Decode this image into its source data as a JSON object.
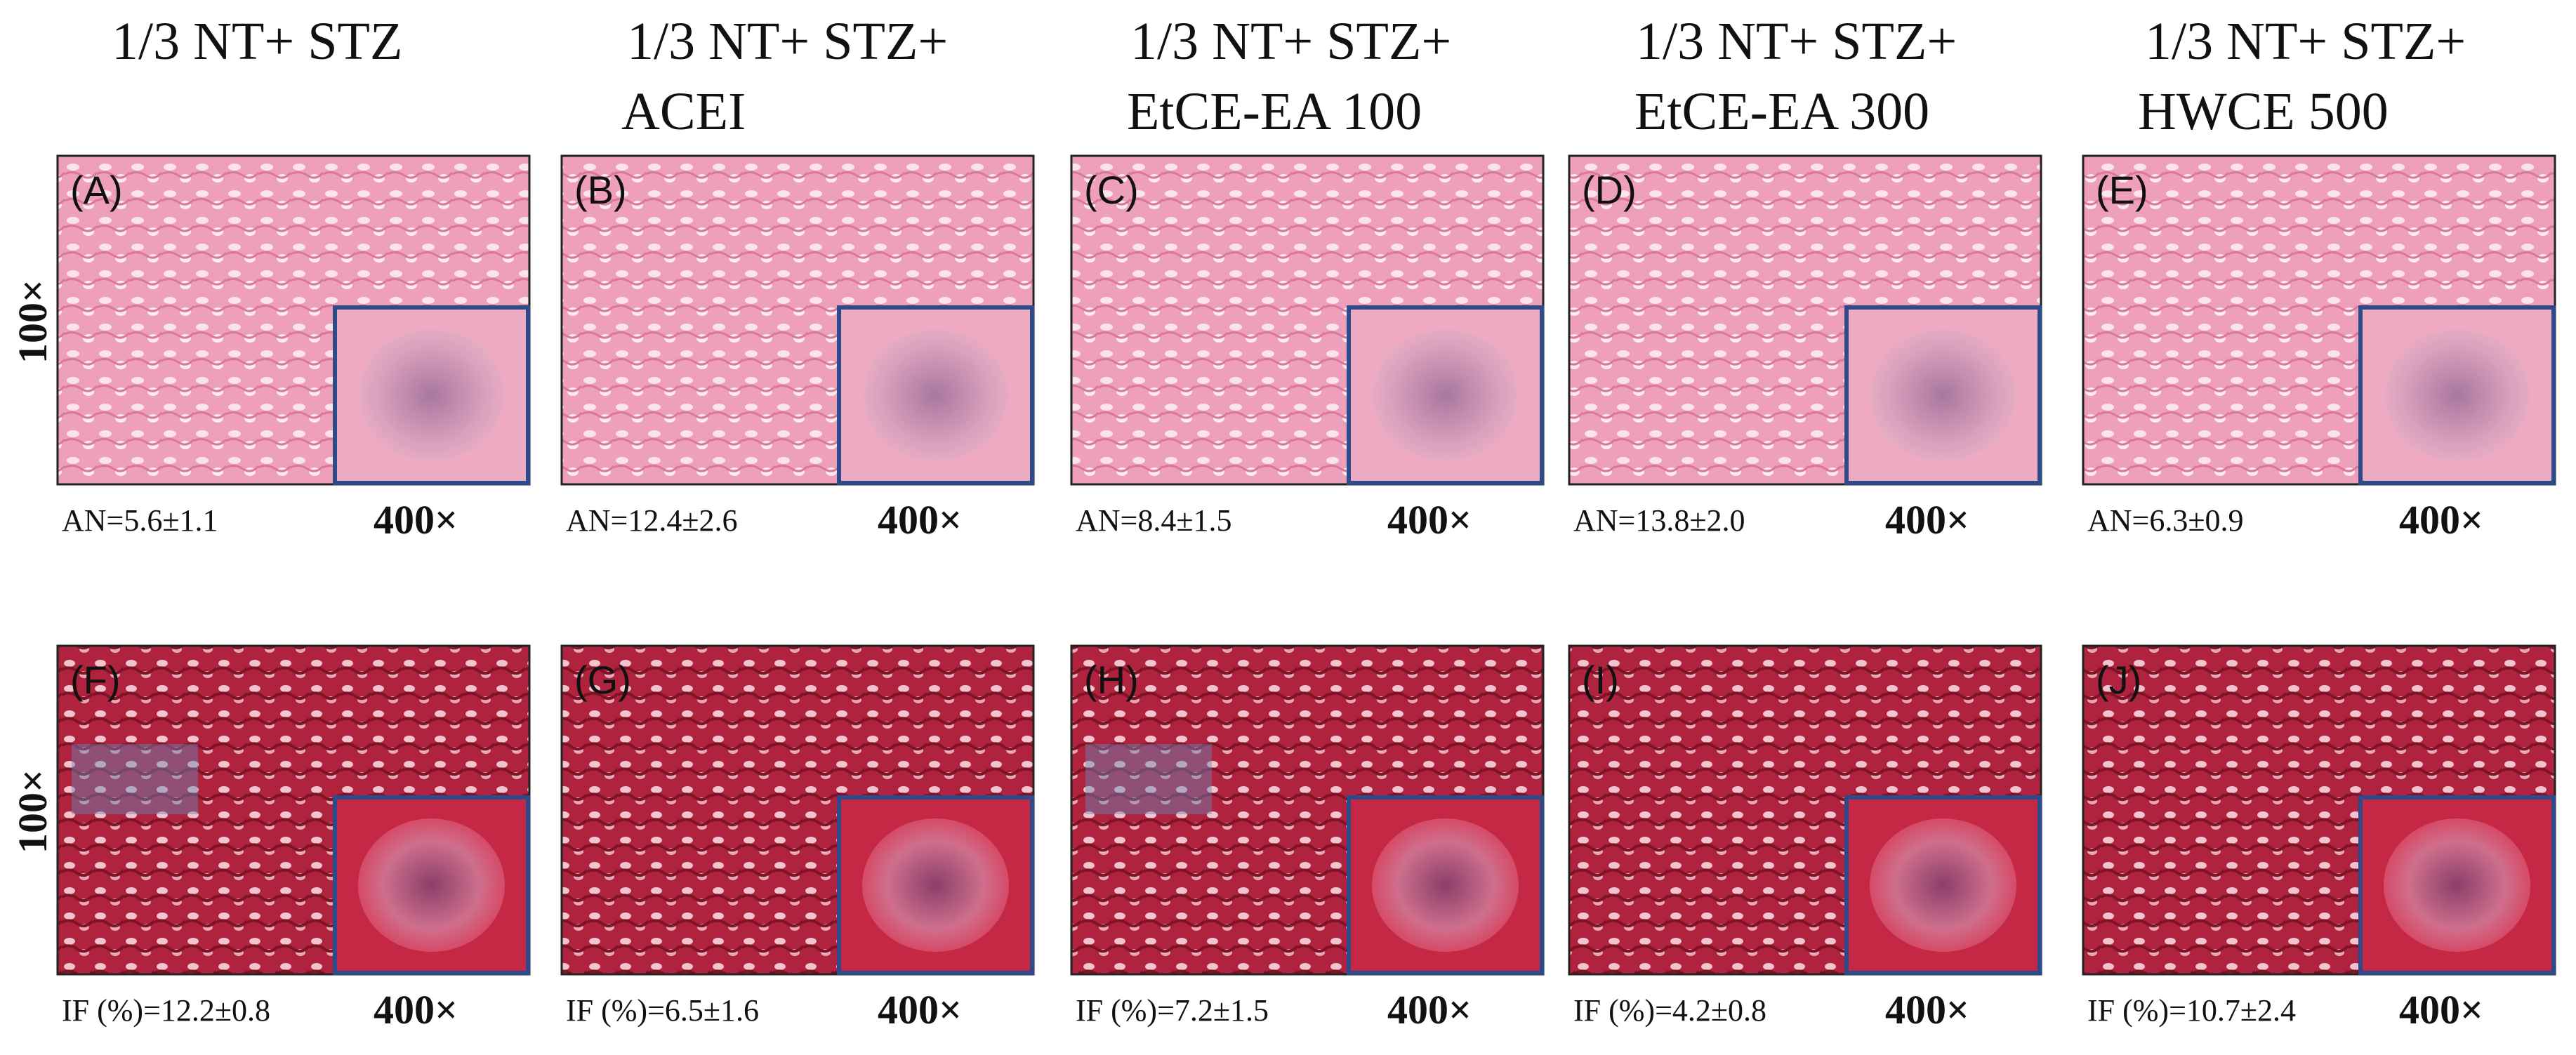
{
  "columns": [
    {
      "header": [
        "1/3 NT+ STZ"
      ]
    },
    {
      "header": [
        "1/3 NT+ STZ+",
        "ACEI"
      ]
    },
    {
      "header": [
        "1/3 NT+ STZ+",
        "EtCE-EA 100"
      ]
    },
    {
      "header": [
        "1/3 NT+ STZ+",
        "EtCE-EA 300"
      ]
    },
    {
      "header": [
        "1/3 NT+ STZ+",
        "HWCE 500"
      ]
    }
  ],
  "rows": [
    {
      "label": "100×",
      "panels": [
        {
          "label": "(A)",
          "stat": "AN=5.6±1.1",
          "magnification": "400×"
        },
        {
          "label": "(B)",
          "stat": "AN=12.4±2.6",
          "magnification": "400×"
        },
        {
          "label": "(C)",
          "stat": "AN=8.4±1.5",
          "magnification": "400×"
        },
        {
          "label": "(D)",
          "stat": "AN=13.8±2.0",
          "magnification": "400×"
        },
        {
          "label": "(E)",
          "stat": "AN=6.3±0.9",
          "magnification": "400×"
        }
      ]
    },
    {
      "label": "100×",
      "panels": [
        {
          "label": "(F)",
          "stat": "IF (%)=12.2±0.8",
          "magnification": "400×"
        },
        {
          "label": "(G)",
          "stat": "IF (%)=6.5±1.6",
          "magnification": "400×"
        },
        {
          "label": "(H)",
          "stat": "IF (%)=7.2±1.5",
          "magnification": "400×"
        },
        {
          "label": "(I)",
          "stat": "IF (%)=4.2±0.8",
          "magnification": "400×"
        },
        {
          "label": "(J)",
          "stat": "IF (%)=10.7±2.4",
          "magnification": "400×"
        }
      ]
    }
  ]
}
